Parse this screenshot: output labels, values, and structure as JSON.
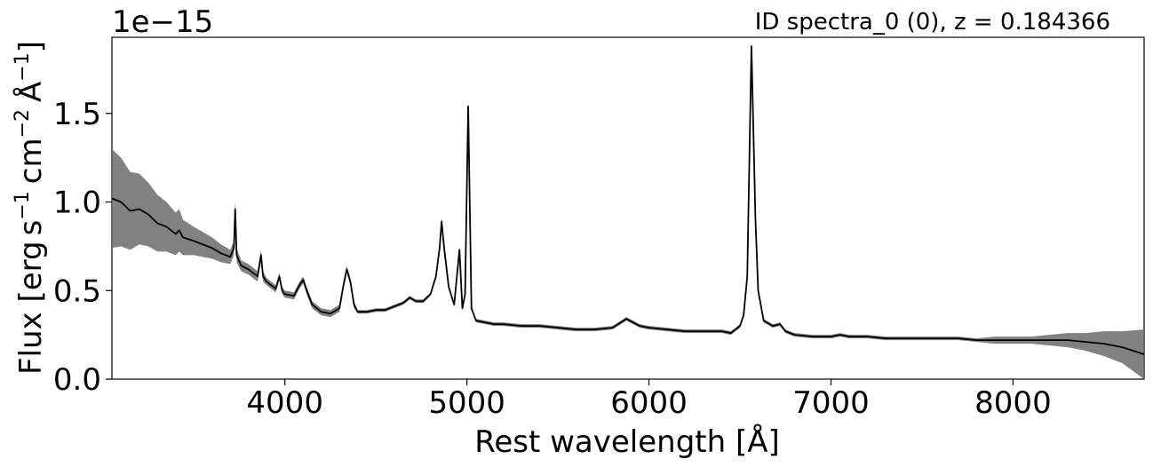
{
  "chart_data": {
    "type": "line",
    "title": "ID spectra_0 (0), z = 0.184366",
    "xlabel": "Rest wavelength [Å]",
    "ylabel": {
      "prefix": "Flux [erg",
      "s_unit": "s",
      "s_exp": "−1",
      "cm_unit": "cm",
      "cm_exp": "−2",
      "a_unit": "Å",
      "a_exp": "−1",
      "suffix": "]"
    },
    "offset_label": "1e−15",
    "y_scale": 1e-15,
    "xlim": [
      3050,
      8720
    ],
    "ylim": [
      0.0,
      1.93
    ],
    "grid": false,
    "legend": "none",
    "x_ticks": [
      {
        "value": 4000,
        "label": "4000"
      },
      {
        "value": 5000,
        "label": "5000"
      },
      {
        "value": 6000,
        "label": "6000"
      },
      {
        "value": 7000,
        "label": "7000"
      },
      {
        "value": 8000,
        "label": "8000"
      }
    ],
    "y_ticks": [
      {
        "value": 0.0,
        "label": "0.0"
      },
      {
        "value": 0.5,
        "label": "0.5"
      },
      {
        "value": 1.0,
        "label": "1.0"
      },
      {
        "value": 1.5,
        "label": "1.5"
      }
    ],
    "series": [
      {
        "color": "#000000",
        "error_color": "#6b6b6b",
        "x": [
          3050,
          3100,
          3150,
          3200,
          3250,
          3300,
          3350,
          3400,
          3420,
          3440,
          3500,
          3550,
          3600,
          3650,
          3700,
          3720,
          3727,
          3735,
          3760,
          3800,
          3850,
          3869,
          3880,
          3900,
          3950,
          3970,
          3985,
          4000,
          4050,
          4080,
          4101,
          4120,
          4150,
          4200,
          4250,
          4300,
          4320,
          4340,
          4360,
          4380,
          4400,
          4450,
          4500,
          4550,
          4600,
          4650,
          4686,
          4720,
          4760,
          4800,
          4830,
          4850,
          4861,
          4875,
          4900,
          4930,
          4959,
          4975,
          4990,
          5007,
          5025,
          5050,
          5100,
          5150,
          5200,
          5300,
          5400,
          5500,
          5600,
          5700,
          5800,
          5876,
          5950,
          6000,
          6100,
          6200,
          6300,
          6400,
          6450,
          6500,
          6520,
          6540,
          6563,
          6585,
          6600,
          6630,
          6680,
          6720,
          6750,
          6800,
          6900,
          7000,
          7050,
          7100,
          7200,
          7300,
          7400,
          7500,
          7600,
          7700,
          7800,
          7900,
          8000,
          8100,
          8200,
          8300,
          8400,
          8500,
          8600,
          8720
        ],
        "y": [
          1.02,
          1.0,
          0.95,
          0.96,
          0.93,
          0.88,
          0.86,
          0.82,
          0.84,
          0.8,
          0.78,
          0.76,
          0.74,
          0.71,
          0.69,
          0.74,
          0.96,
          0.7,
          0.64,
          0.62,
          0.58,
          0.7,
          0.58,
          0.55,
          0.51,
          0.58,
          0.5,
          0.48,
          0.47,
          0.53,
          0.56,
          0.5,
          0.42,
          0.38,
          0.37,
          0.4,
          0.52,
          0.62,
          0.55,
          0.42,
          0.38,
          0.38,
          0.39,
          0.39,
          0.41,
          0.43,
          0.46,
          0.44,
          0.44,
          0.48,
          0.58,
          0.74,
          0.89,
          0.74,
          0.52,
          0.42,
          0.73,
          0.4,
          0.48,
          1.54,
          0.4,
          0.33,
          0.32,
          0.31,
          0.31,
          0.3,
          0.3,
          0.29,
          0.28,
          0.28,
          0.29,
          0.34,
          0.3,
          0.29,
          0.28,
          0.27,
          0.27,
          0.27,
          0.26,
          0.3,
          0.36,
          0.58,
          1.88,
          0.9,
          0.5,
          0.33,
          0.3,
          0.31,
          0.27,
          0.25,
          0.24,
          0.24,
          0.25,
          0.24,
          0.24,
          0.23,
          0.23,
          0.23,
          0.23,
          0.23,
          0.22,
          0.22,
          0.22,
          0.22,
          0.22,
          0.22,
          0.21,
          0.2,
          0.18,
          0.14
        ],
        "err": [
          0.28,
          0.25,
          0.22,
          0.2,
          0.18,
          0.16,
          0.14,
          0.12,
          0.12,
          0.1,
          0.08,
          0.07,
          0.06,
          0.05,
          0.04,
          0.04,
          0.05,
          0.04,
          0.03,
          0.03,
          0.03,
          0.03,
          0.03,
          0.02,
          0.02,
          0.02,
          0.02,
          0.02,
          0.02,
          0.02,
          0.02,
          0.02,
          0.02,
          0.02,
          0.02,
          0.02,
          0.02,
          0.02,
          0.02,
          0.02,
          0.01,
          0.01,
          0.01,
          0.01,
          0.01,
          0.01,
          0.01,
          0.01,
          0.01,
          0.01,
          0.01,
          0.02,
          0.02,
          0.02,
          0.01,
          0.01,
          0.02,
          0.01,
          0.01,
          0.02,
          0.01,
          0.01,
          0.01,
          0.01,
          0.01,
          0.01,
          0.01,
          0.01,
          0.01,
          0.01,
          0.01,
          0.01,
          0.01,
          0.01,
          0.01,
          0.01,
          0.01,
          0.01,
          0.01,
          0.01,
          0.01,
          0.02,
          0.03,
          0.02,
          0.01,
          0.01,
          0.01,
          0.01,
          0.01,
          0.01,
          0.01,
          0.01,
          0.01,
          0.01,
          0.01,
          0.01,
          0.01,
          0.01,
          0.01,
          0.01,
          0.01,
          0.02,
          0.02,
          0.02,
          0.03,
          0.04,
          0.05,
          0.07,
          0.09,
          0.14
        ]
      }
    ]
  }
}
